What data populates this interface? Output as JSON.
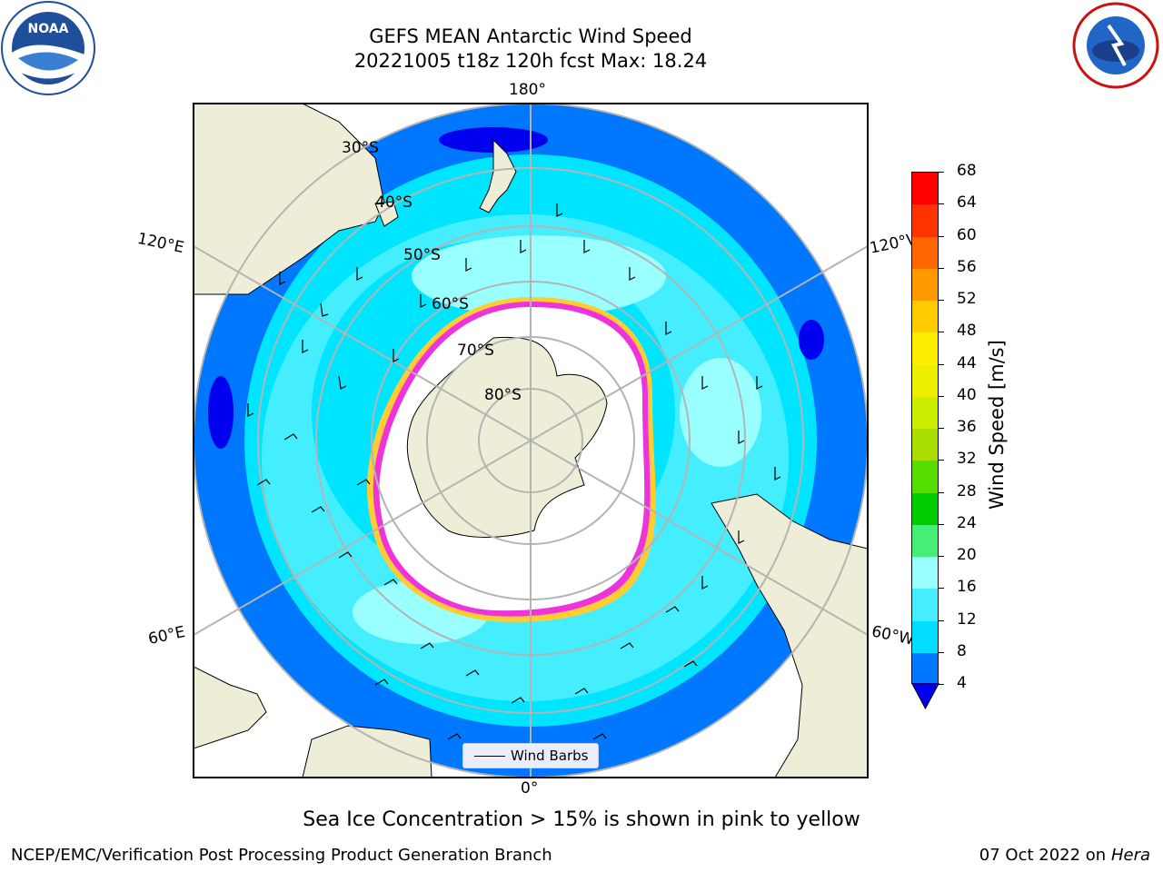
{
  "header": {
    "title_line1": "GEFS MEAN Antarctic Wind Speed",
    "title_line2": "20221005 t18z 120h fcst   Max: 18.24"
  },
  "map": {
    "lon_labels": {
      "top": "180°",
      "bottom": "0°",
      "left_upper": "120°E",
      "left_lower": "60°E",
      "right_upper": "120°W",
      "right_lower": "60°W"
    },
    "lat_labels": [
      "30°S",
      "40°S",
      "50°S",
      "60°S",
      "70°S",
      "80°S"
    ],
    "legend": "Wind Barbs"
  },
  "colorbar": {
    "label": "Wind Speed [m/s]",
    "ticks": [
      "4",
      "8",
      "12",
      "16",
      "20",
      "24",
      "28",
      "32",
      "36",
      "40",
      "44",
      "48",
      "52",
      "56",
      "60",
      "64",
      "68"
    ],
    "colors": [
      "#0000ee",
      "#0077ff",
      "#00ddff",
      "#44eeff",
      "#99ffff",
      "#44ee77",
      "#00cc00",
      "#55dd00",
      "#aadd00",
      "#ccee00",
      "#eeee00",
      "#ffee00",
      "#ffcc00",
      "#ff9900",
      "#ff6600",
      "#ff3300",
      "#ff0000"
    ]
  },
  "note": "Sea Ice Concentration > 15% is shown in pink to yellow",
  "footer": {
    "left": "NCEP/EMC/Verification Post Processing Product Generation Branch",
    "right_date": "07 Oct 2022 on ",
    "right_host": "Hera"
  }
}
